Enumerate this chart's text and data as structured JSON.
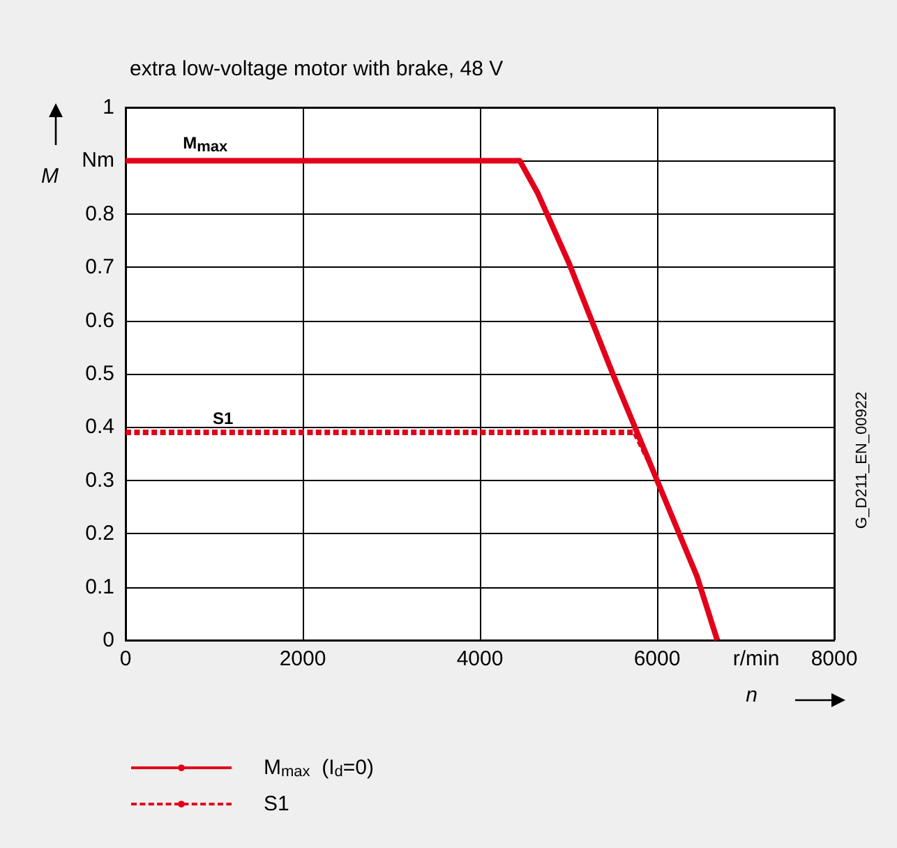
{
  "chart_data": {
    "type": "line",
    "title": "extra low-voltage motor with brake, 48 V",
    "xlabel": "n",
    "ylabel": "M",
    "xlim": [
      0,
      8000
    ],
    "xticks": [
      0,
      2000,
      4000,
      6000,
      8000
    ],
    "ylim": [
      0,
      1
    ],
    "yticks": [
      0,
      0.1,
      0.2,
      0.3,
      0.4,
      0.5,
      0.6,
      0.7,
      0.8,
      {
        "value": 0.9,
        "label": "Nm"
      },
      1
    ],
    "grid": true,
    "legend": "bottom left",
    "marker": "none",
    "series": [
      {
        "name": "M$_{max}$  (I$_{d}$=0)",
        "color": "#e2001a",
        "line_style": "solid",
        "x": [
          0,
          4450,
          4650,
          5000,
          5500,
          5800,
          6000,
          6250,
          6450,
          6680
        ],
        "values": [
          0.9,
          0.9,
          0.84,
          0.71,
          0.5,
          0.38,
          0.3,
          0.2,
          0.12,
          0
        ]
      },
      {
        "name": "S1",
        "color": "#e2001a",
        "line_style": "dashed",
        "x": [
          0,
          5750,
          5900
        ],
        "values": [
          0.39,
          0.39,
          0.34
        ]
      }
    ],
    "annotations": [
      {
        "text": "M$_{max}$",
        "x": 900,
        "y": 0.9
      },
      {
        "text": "S1",
        "x": 1100,
        "y": 0.39
      },
      "r/min",
      "G_D211_EN_00922"
    ]
  }
}
